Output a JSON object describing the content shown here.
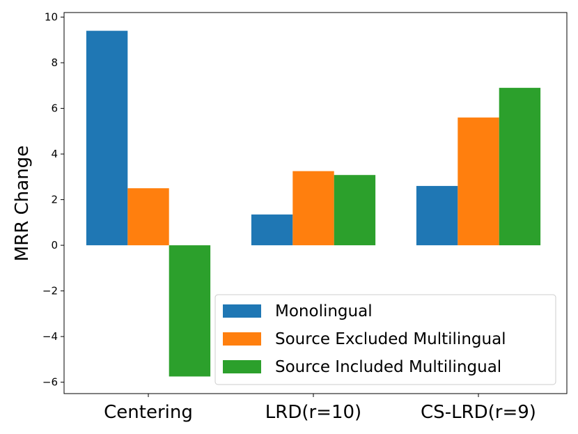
{
  "chart_data": {
    "type": "bar",
    "title": "",
    "xlabel": "",
    "ylabel": "MRR Change",
    "categories": [
      "Centering",
      "LRD(r=10)",
      "CS-LRD(r=9)"
    ],
    "series": [
      {
        "name": "Monolingual",
        "color": "#1f77b4",
        "values": [
          9.4,
          1.35,
          2.6
        ]
      },
      {
        "name": "Source Excluded Multilingual",
        "color": "#ff7f0e",
        "values": [
          2.5,
          3.25,
          5.6
        ]
      },
      {
        "name": "Source Included Multilingual",
        "color": "#2ca02c",
        "values": [
          -5.75,
          3.08,
          6.9
        ]
      }
    ],
    "ylim": [
      -6.5,
      10.2
    ],
    "yticks": [
      -6,
      -4,
      -2,
      0,
      2,
      4,
      6,
      8,
      10
    ],
    "ytick_labels": [
      "−6",
      "−4",
      "−2",
      "0",
      "2",
      "4",
      "6",
      "8",
      "10"
    ],
    "legend_position": "lower-right"
  }
}
